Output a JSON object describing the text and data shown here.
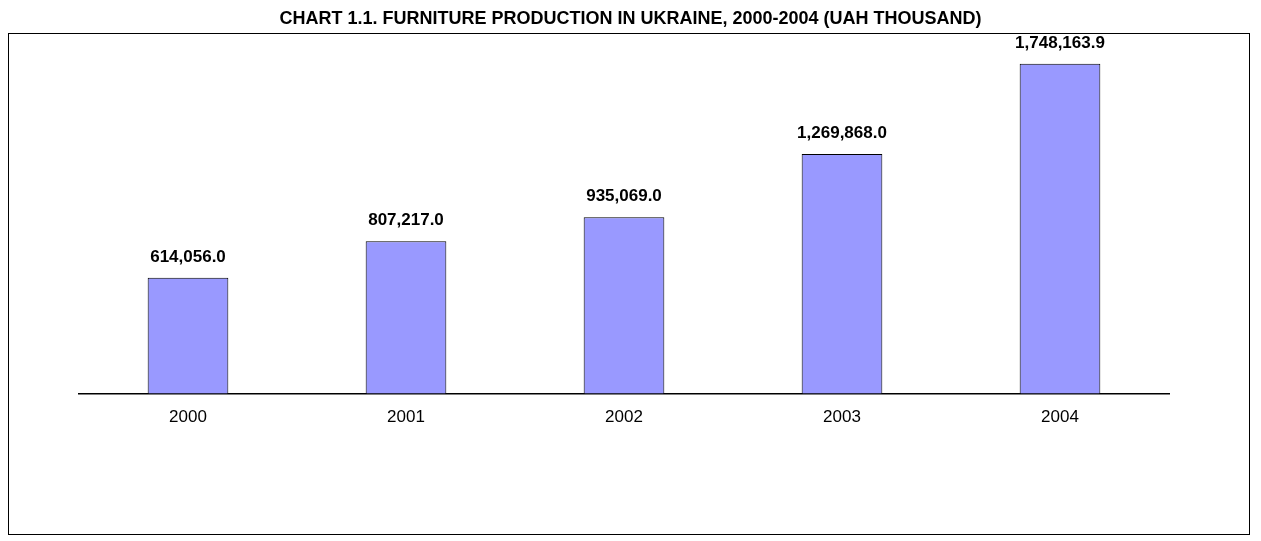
{
  "chart_data": {
    "type": "bar",
    "title": "CHART 1.1. FURNITURE PRODUCTION IN UKRAINE, 2000-2004 (UAH THOUSAND)",
    "categories": [
      "2000",
      "2001",
      "2002",
      "2003",
      "2004"
    ],
    "values": [
      614056.0,
      807217.0,
      935069.0,
      1269868.0,
      1748163.9
    ],
    "value_labels": [
      "614,056.0",
      "807,217.0",
      "935,069.0",
      "1,269,868.0",
      "1,748,163.9"
    ],
    "color": "#9999ff",
    "grid": false,
    "legend": false
  }
}
